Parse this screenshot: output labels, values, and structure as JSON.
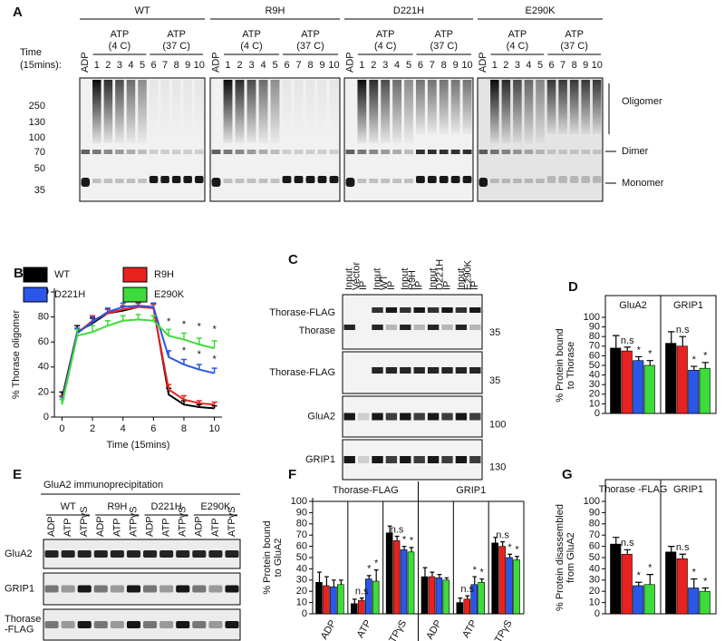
{
  "blot_a": {
    "letter": "A",
    "groups": [
      {
        "name": "WT",
        "conditions": [
          [
            "ATP",
            "(4 C)"
          ],
          [
            "ATP",
            "(37 C)"
          ]
        ]
      },
      {
        "name": "R9H",
        "conditions": [
          [
            "ATP",
            "(4 C)"
          ],
          [
            "ATP",
            "(37 C)"
          ]
        ]
      },
      {
        "name": "D221H",
        "conditions": [
          [
            "ATP",
            "(4 C)"
          ],
          [
            "ATP",
            "(37 C)"
          ]
        ]
      },
      {
        "name": "E290K",
        "conditions": [
          [
            "ATP",
            "(4 C)"
          ],
          [
            "ATP",
            "(37 C)"
          ]
        ]
      }
    ],
    "time_label": [
      "Time",
      "(15mins):"
    ],
    "lanes": [
      "ADP",
      1,
      2,
      3,
      4,
      5,
      6,
      7,
      8,
      9,
      10
    ],
    "mw": [
      250,
      130,
      100,
      70,
      50,
      35
    ],
    "bands": [
      "Oligomer",
      "Dimer",
      "Monomer"
    ]
  },
  "blot_c": {
    "letter": "C",
    "lanes": [
      "Input",
      "IP",
      "Input",
      "IP",
      "Input",
      "IP",
      "Input",
      "IP",
      "Input",
      "IP"
    ],
    "genotypes": [
      "Vector",
      "WT",
      "R9H",
      "D221H",
      "E290K"
    ],
    "rows": [
      {
        "labels": [
          "Thorase-FLAG",
          "Thorase"
        ],
        "mw": 35
      },
      {
        "labels": [
          "Thorase-FLAG"
        ],
        "mw": 35
      },
      {
        "labels": [
          "GluA2"
        ],
        "mw": 100
      },
      {
        "labels": [
          "GRIP1"
        ],
        "mw": 130
      }
    ]
  },
  "blot_e": {
    "letter": "E",
    "title": "GluA2 immunoprecipitation",
    "groups": [
      "WT",
      "R9H",
      "D221H",
      "E290K"
    ],
    "lanes": [
      "ADP",
      "ATP",
      "ATPγS"
    ],
    "rows": [
      [
        "GluA2"
      ],
      [
        "GRIP1"
      ],
      [
        "Thorase",
        "-FLAG"
      ]
    ]
  },
  "chart_data": [
    {
      "type": "line",
      "panel": "B",
      "ylabel": "% Thorase oligomer",
      "xlabel": "Time (15mins)",
      "x": [
        0,
        1,
        2,
        3,
        4,
        5,
        6,
        7,
        8,
        9,
        10
      ],
      "xlim": [
        -0.5,
        10.5
      ],
      "xticks": [
        0,
        2,
        4,
        6,
        8,
        10
      ],
      "ylim": [
        0,
        100
      ],
      "yticks": [
        0,
        20,
        40,
        60,
        80,
        100
      ],
      "series": [
        {
          "name": "WT",
          "color": "#000000",
          "values": [
            15,
            68,
            75,
            83,
            85,
            88,
            88,
            18,
            10,
            8,
            7
          ],
          "errors": [
            5,
            5,
            4,
            4,
            3,
            3,
            3,
            5,
            3,
            2,
            2
          ]
        },
        {
          "name": "R9H",
          "color": "#e8221f",
          "values": [
            13,
            67,
            77,
            83,
            86,
            88,
            87,
            22,
            14,
            11,
            10
          ],
          "errors": [
            4,
            4,
            4,
            3,
            3,
            3,
            3,
            4,
            3,
            2,
            2
          ]
        },
        {
          "name": "D221H",
          "color": "#2a57e8",
          "values": [
            12,
            67,
            76,
            84,
            88,
            89,
            88,
            48,
            42,
            38,
            35
          ],
          "errors": [
            4,
            4,
            4,
            3,
            3,
            3,
            3,
            5,
            4,
            4,
            4
          ]
        },
        {
          "name": "E290K",
          "color": "#3ddc3a",
          "values": [
            10,
            65,
            68,
            73,
            77,
            78,
            77,
            65,
            62,
            58,
            55
          ],
          "errors": [
            4,
            5,
            5,
            4,
            4,
            4,
            4,
            5,
            5,
            5,
            6
          ]
        }
      ],
      "annotations": [
        {
          "x": 7,
          "y": 76,
          "label": "*"
        },
        {
          "x": 8,
          "y": 74,
          "label": "*"
        },
        {
          "x": 9,
          "y": 72,
          "label": "*"
        },
        {
          "x": 10,
          "y": 70,
          "label": "*"
        },
        {
          "x": 8,
          "y": 53,
          "label": "*"
        },
        {
          "x": 9,
          "y": 50,
          "label": "*"
        },
        {
          "x": 10,
          "y": 46,
          "label": "*"
        }
      ]
    },
    {
      "type": "bar",
      "panel": "D",
      "ylabel": [
        "% Protein bound",
        "to Thorase"
      ],
      "categories": [
        "GluA2",
        "GRIP1"
      ],
      "ylim": [
        0,
        100
      ],
      "yticks": [
        0,
        10,
        20,
        30,
        40,
        50,
        60,
        70,
        80,
        90,
        100
      ],
      "series": [
        {
          "color": "#000000",
          "values": [
            68,
            73
          ],
          "errors": [
            13,
            12
          ]
        },
        {
          "color": "#e8221f",
          "values": [
            65,
            70
          ],
          "errors": [
            4,
            10
          ]
        },
        {
          "color": "#2a57e8",
          "values": [
            55,
            45
          ],
          "errors": [
            4,
            4
          ]
        },
        {
          "color": "#3ddc3a",
          "values": [
            50,
            47
          ],
          "errors": [
            5,
            6
          ]
        }
      ],
      "annotations": [
        {
          "category": 0,
          "series": 1,
          "label": "n.s"
        },
        {
          "category": 0,
          "series": 2,
          "label": "*"
        },
        {
          "category": 0,
          "series": 3,
          "label": "*"
        },
        {
          "category": 1,
          "series": 1,
          "label": "n.s"
        },
        {
          "category": 1,
          "series": 2,
          "label": "*"
        },
        {
          "category": 1,
          "series": 3,
          "label": "*"
        }
      ]
    },
    {
      "type": "bar",
      "panel": "F",
      "ylabel": [
        "% Protein bound",
        "to GluA2"
      ],
      "groups": [
        "Thorase-FLAG",
        "GRIP1"
      ],
      "categories": [
        "ADP",
        "ATP",
        "ATPγS",
        "ADP",
        "ATP",
        "ATPγS"
      ],
      "ylim": [
        0,
        100
      ],
      "yticks": [
        0,
        10,
        20,
        30,
        40,
        50,
        60,
        70,
        80,
        90,
        100
      ],
      "series": [
        {
          "color": "#000000",
          "values": [
            28,
            9,
            72,
            33,
            10,
            63
          ],
          "errors": [
            9,
            4,
            6,
            8,
            4,
            5
          ]
        },
        {
          "color": "#e8221f",
          "values": [
            25,
            12,
            65,
            33,
            13,
            60
          ],
          "errors": [
            8,
            2,
            4,
            4,
            3,
            4
          ]
        },
        {
          "color": "#2a57e8",
          "values": [
            24,
            31,
            57,
            32,
            26,
            50
          ],
          "errors": [
            6,
            3,
            3,
            3,
            7,
            3
          ]
        },
        {
          "color": "#3ddc3a",
          "values": [
            26,
            29,
            55,
            30,
            28,
            48
          ],
          "errors": [
            4,
            10,
            4,
            2,
            3,
            3
          ]
        }
      ],
      "annotations": [
        {
          "category": 1,
          "series": 1,
          "label": "n.s"
        },
        {
          "category": 1,
          "series": 2,
          "label": "*"
        },
        {
          "category": 1,
          "series": 3,
          "label": "*"
        },
        {
          "category": 2,
          "series": 1,
          "label": "n.s"
        },
        {
          "category": 2,
          "series": 2,
          "label": "*"
        },
        {
          "category": 2,
          "series": 3,
          "label": "*"
        },
        {
          "category": 4,
          "series": 1,
          "label": "n.s"
        },
        {
          "category": 4,
          "series": 2,
          "label": "*"
        },
        {
          "category": 4,
          "series": 3,
          "label": "*"
        },
        {
          "category": 5,
          "series": 1,
          "label": "n.s"
        },
        {
          "category": 5,
          "series": 2,
          "label": "*"
        },
        {
          "category": 5,
          "series": 3,
          "label": "*"
        }
      ]
    },
    {
      "type": "bar",
      "panel": "G",
      "ylabel": [
        "% Protein disassembled",
        "from GluA2"
      ],
      "categories": [
        "Thorase -FLAG",
        "GRIP1"
      ],
      "ylim": [
        0,
        100
      ],
      "yticks": [
        0,
        10,
        20,
        30,
        40,
        50,
        60,
        70,
        80,
        90,
        100
      ],
      "series": [
        {
          "color": "#000000",
          "values": [
            62,
            55
          ],
          "errors": [
            6,
            5
          ]
        },
        {
          "color": "#e8221f",
          "values": [
            53,
            49
          ],
          "errors": [
            4,
            4
          ]
        },
        {
          "color": "#2a57e8",
          "values": [
            25,
            23
          ],
          "errors": [
            3,
            8
          ]
        },
        {
          "color": "#3ddc3a",
          "values": [
            26,
            20
          ],
          "errors": [
            9,
            3
          ]
        }
      ],
      "annotations": [
        {
          "category": 0,
          "series": 1,
          "label": "n.s"
        },
        {
          "category": 0,
          "series": 2,
          "label": "*"
        },
        {
          "category": 0,
          "series": 3,
          "label": "*"
        },
        {
          "category": 1,
          "series": 1,
          "label": "n.s"
        },
        {
          "category": 1,
          "series": 2,
          "label": "*"
        },
        {
          "category": 1,
          "series": 3,
          "label": "*"
        }
      ]
    }
  ]
}
